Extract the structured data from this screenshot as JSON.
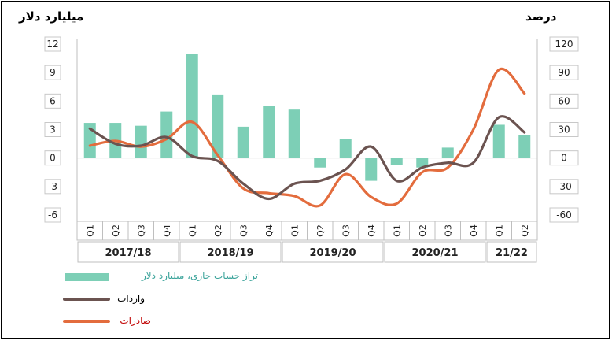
{
  "chart_data": {
    "type": "bar",
    "left_axis_title": "میلیارد دلار",
    "right_axis_title": "درصد",
    "left_ylim": [
      -6,
      12
    ],
    "left_ticks": [
      "12",
      "9",
      "6",
      "3",
      "0",
      "-3",
      "-6"
    ],
    "right_ylim": [
      -60,
      120
    ],
    "right_ticks": [
      "120",
      "90",
      "60",
      "30",
      "0",
      "-30",
      "-60"
    ],
    "quarters": [
      "Q1",
      "Q2",
      "Q3",
      "Q4",
      "Q1",
      "Q2",
      "Q3",
      "Q4",
      "Q1",
      "Q2",
      "Q3",
      "Q4",
      "Q1",
      "Q2",
      "Q3",
      "Q4",
      "Q1",
      "Q2"
    ],
    "years": [
      {
        "label": "2017/18",
        "span": 4
      },
      {
        "label": "2018/19",
        "span": 4
      },
      {
        "label": "2019/20",
        "span": 4
      },
      {
        "label": "2020/21",
        "span": 4
      },
      {
        "label": "21/22",
        "span": 2
      }
    ],
    "series": [
      {
        "name": "تراز حساب جاری، میلیارد دلار",
        "kind": "bar",
        "axis": "left",
        "color": "#7dcfb6",
        "values": [
          3.7,
          3.7,
          3.4,
          4.9,
          11,
          6.7,
          3.3,
          5.5,
          5.1,
          -1,
          2,
          -2.4,
          -0.7,
          -1,
          1.1,
          null,
          3.5,
          2.4
        ]
      },
      {
        "name": "واردات",
        "kind": "line",
        "axis": "right",
        "color": "#6b5350",
        "values": [
          31,
          15,
          13,
          22,
          2,
          -3,
          -27,
          -43,
          -27,
          -24,
          -12,
          12,
          -24,
          -10,
          -5,
          -5,
          43,
          27
        ]
      },
      {
        "name": "صادرات",
        "kind": "line",
        "axis": "right",
        "color": "#e36c3d",
        "values": [
          13,
          18,
          12,
          20,
          38,
          3,
          -32,
          -37,
          -40,
          -50,
          -17,
          -41,
          -48,
          -15,
          -10,
          30,
          93,
          68
        ]
      }
    ],
    "legend": [
      {
        "label": "تراز حساب جاری، میلیارد دلار",
        "color": "#7dcfb6",
        "text_color": "#3aa39a",
        "type": "box"
      },
      {
        "label": "واردات",
        "color": "#6b5350",
        "text_color": "#000000",
        "type": "line"
      },
      {
        "label": "صادرات",
        "color": "#e36c3d",
        "text_color": "#c00000",
        "type": "line"
      }
    ]
  }
}
